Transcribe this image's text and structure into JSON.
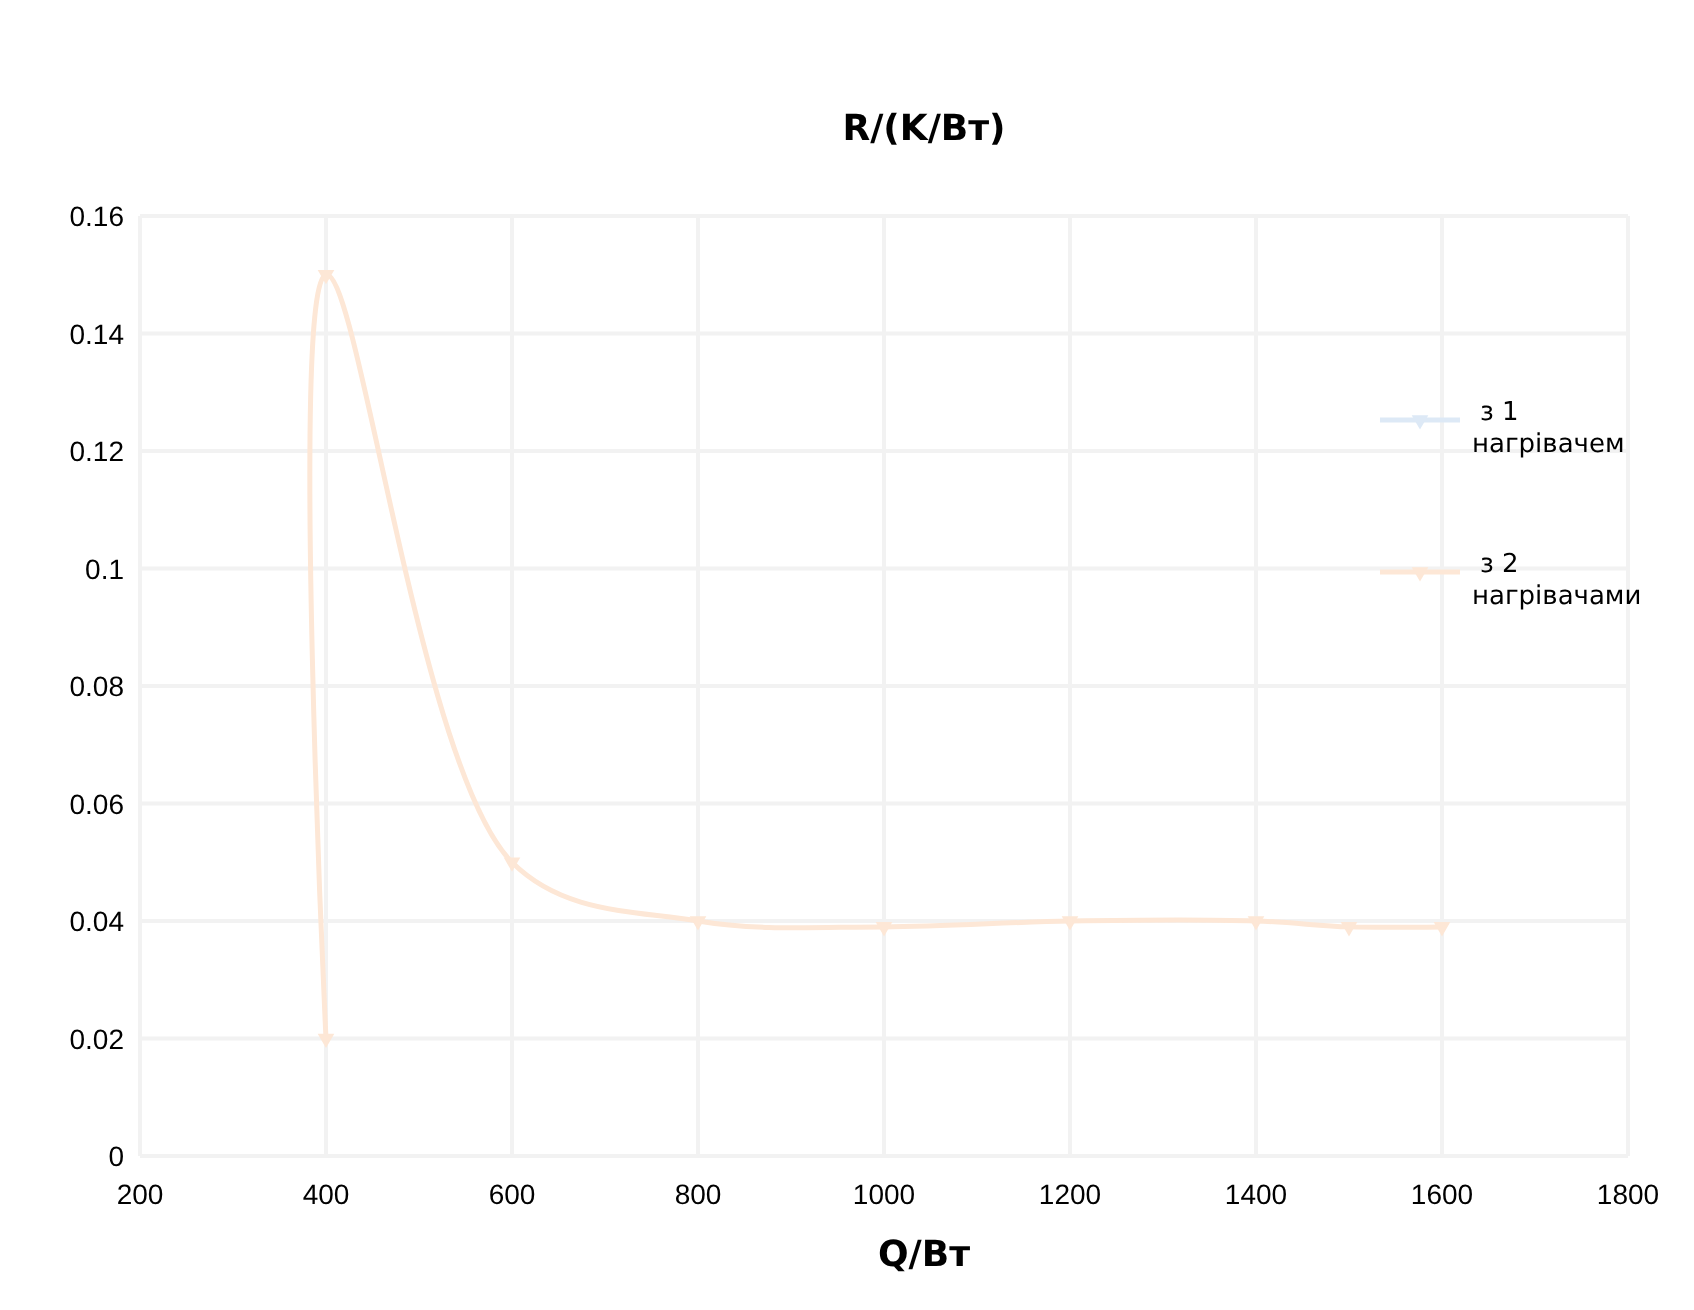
{
  "chart_data": {
    "type": "line",
    "title": "R/(K/Вт)",
    "xlabel": "Q/Вт",
    "xlim": [
      200,
      1800
    ],
    "xticks": [
      200,
      400,
      600,
      800,
      1000,
      1200,
      1400,
      1600,
      1800
    ],
    "ylim": [
      0,
      0.16
    ],
    "yticks": [
      0,
      0.02,
      0.04,
      0.06,
      0.08,
      0.1,
      0.12,
      0.14,
      0.16
    ],
    "grid": true,
    "legend": "right",
    "marker": "triangle",
    "line_style": "solid",
    "series": [
      {
        "name": "з 1 нагрівачем",
        "color": "#dde9f6"
      },
      {
        "name": "з 2 нагрівачами",
        "color": "#fde7d6",
        "x": [
          400,
          400,
          600,
          800,
          1000,
          1200,
          1400,
          1500,
          1600
        ],
        "values": [
          0.02,
          0.15,
          0.05,
          0.04,
          0.039,
          0.04,
          0.04,
          0.039,
          0.039
        ]
      }
    ]
  }
}
